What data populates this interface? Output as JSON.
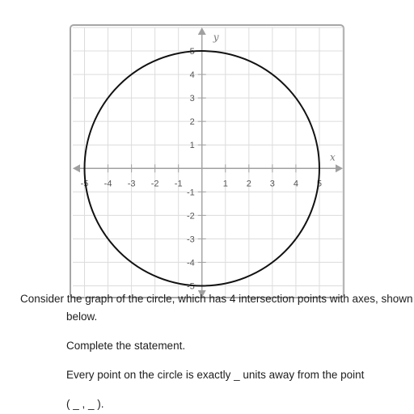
{
  "chart_data": {
    "type": "line",
    "title": "",
    "xlabel": "x",
    "ylabel": "y",
    "xlim": [
      -5.5,
      6
    ],
    "ylim": [
      -5.5,
      6
    ],
    "xticks": [
      -5,
      -4,
      -3,
      -2,
      -1,
      1,
      2,
      3,
      4,
      5
    ],
    "yticks": [
      -5,
      -4,
      -3,
      -2,
      -1,
      1,
      2,
      3,
      4,
      5
    ],
    "grid": true,
    "series": [
      {
        "shape": "circle",
        "center": [
          0,
          0
        ],
        "radius": 5,
        "color": "#111111"
      }
    ]
  },
  "text": {
    "intro": "Consider the graph of the circle, which has 4 intersection points with axes, shown",
    "below": "below.",
    "instruction": "Complete the statement.",
    "statement": "Every point on the circle is exactly _ units away from the point",
    "point": "( _ , _ )."
  },
  "colors": {
    "axis": "#a0a0a0",
    "grid": "#dcdcdc",
    "curve": "#111111",
    "tick_label": "#555555"
  }
}
